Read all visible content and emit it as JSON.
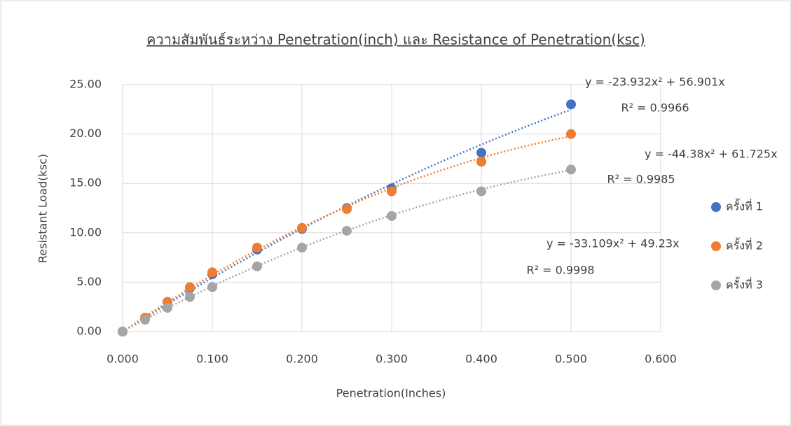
{
  "chart_data": {
    "type": "scatter",
    "title": "ความสัมพันธ์ระหว่าง Penetration(inch) และ Resistance of Penetration(ksc)",
    "x_label": "Penetration(Inches)",
    "y_label": "Resistant Load(ksc)",
    "x": [
      0,
      0.025,
      0.05,
      0.075,
      0.1,
      0.15,
      0.2,
      0.25,
      0.3,
      0.4,
      0.5
    ],
    "series": [
      {
        "name": "ครั้งที่ 1",
        "color": "#4472c4",
        "values": [
          0,
          1.4,
          3.0,
          4.4,
          5.8,
          8.3,
          10.4,
          12.5,
          14.5,
          18.1,
          23.0
        ],
        "trendline": {
          "a": -23.932,
          "b": 56.901,
          "equation": "y = -23.932x² + 56.901x",
          "r2": "R² = 0.9966"
        }
      },
      {
        "name": "ครั้งที่ 2",
        "color": "#ed7d31",
        "values": [
          0,
          1.4,
          3.0,
          4.5,
          6.0,
          8.5,
          10.5,
          12.4,
          14.2,
          17.2,
          20.0
        ],
        "trendline": {
          "a": -44.38,
          "b": 61.725,
          "equation": "y = -44.38x² + 61.725x",
          "r2": "R² = 0.9985"
        }
      },
      {
        "name": "ครั้งที่ 3",
        "color": "#a5a5a5",
        "values": [
          0,
          1.2,
          2.4,
          3.5,
          4.5,
          6.6,
          8.5,
          10.2,
          11.7,
          14.2,
          16.4
        ],
        "trendline": {
          "a": -33.109,
          "b": 49.23,
          "equation": "y = -33.109x² + 49.23x",
          "r2": "R² = 0.9998"
        }
      }
    ],
    "xlim": [
      0,
      0.6
    ],
    "xticks": [
      {
        "value": 0,
        "label": "0.000"
      },
      {
        "value": 0.1,
        "label": "0.100"
      },
      {
        "value": 0.2,
        "label": "0.200"
      },
      {
        "value": 0.3,
        "label": "0.300"
      },
      {
        "value": 0.4,
        "label": "0.400"
      },
      {
        "value": 0.5,
        "label": "0.500"
      },
      {
        "value": 0.6,
        "label": "0.600"
      }
    ],
    "ylim": [
      0,
      25
    ],
    "yticks": [
      {
        "value": 0,
        "label": "0.00"
      },
      {
        "value": 5,
        "label": "5.00"
      },
      {
        "value": 10,
        "label": "10.00"
      },
      {
        "value": 15,
        "label": "15.00"
      },
      {
        "value": 20,
        "label": "20.00"
      },
      {
        "value": 25,
        "label": "25.00"
      }
    ],
    "grid": true,
    "legend": "right"
  }
}
